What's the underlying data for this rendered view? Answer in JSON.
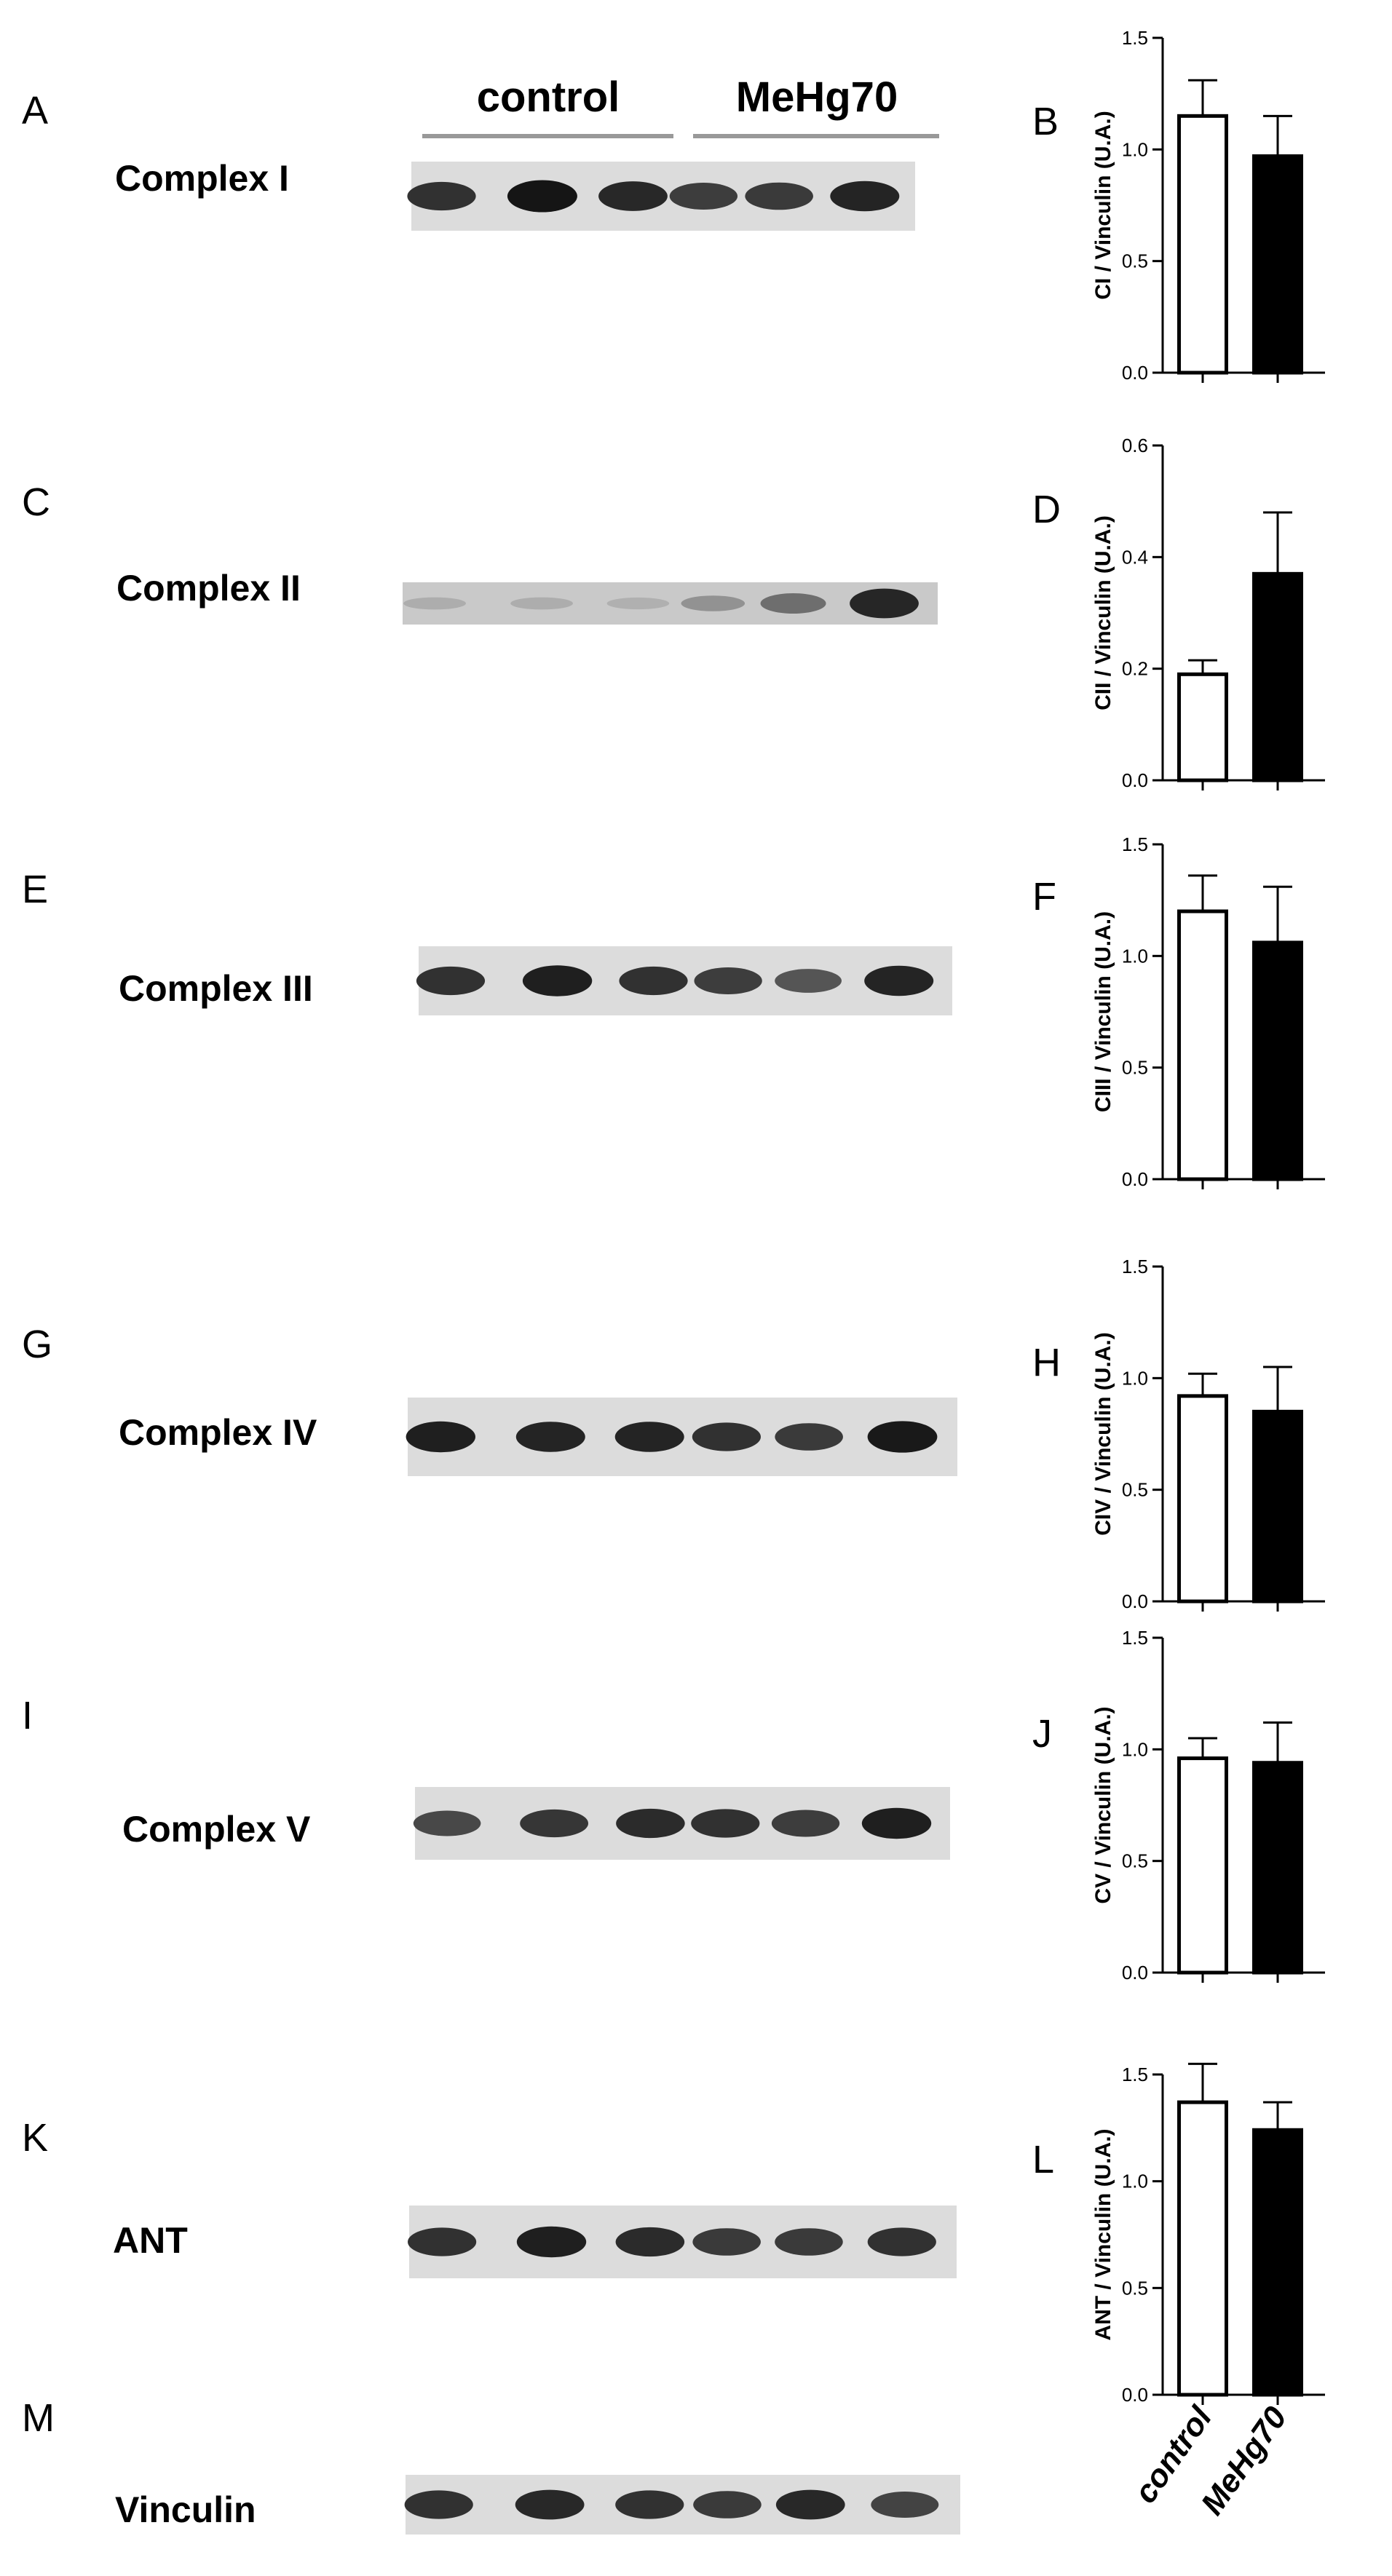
{
  "groups": [
    "control",
    "MeHg70"
  ],
  "panels": [
    {
      "panel_letter": "A",
      "blot_name": "Complex I",
      "chart_letter": "B",
      "bands": [
        0.85,
        1.0,
        0.9,
        0.78,
        0.8,
        0.92
      ]
    },
    {
      "panel_letter": "C",
      "blot_name": "Complex II",
      "chart_letter": "D",
      "bands": [
        0.15,
        0.15,
        0.13,
        0.3,
        0.5,
        0.9
      ]
    },
    {
      "panel_letter": "E",
      "blot_name": "Complex III",
      "chart_letter": "F",
      "bands": [
        0.85,
        0.95,
        0.85,
        0.78,
        0.65,
        0.92
      ]
    },
    {
      "panel_letter": "G",
      "blot_name": "Complex IV",
      "chart_letter": "H",
      "bands": [
        0.95,
        0.92,
        0.92,
        0.85,
        0.8,
        0.98
      ]
    },
    {
      "panel_letter": "I",
      "blot_name": "Complex V",
      "chart_letter": "J",
      "bands": [
        0.72,
        0.82,
        0.88,
        0.85,
        0.78,
        0.95
      ]
    },
    {
      "panel_letter": "K",
      "blot_name": "ANT",
      "chart_letter": "L",
      "bands": [
        0.85,
        0.95,
        0.88,
        0.8,
        0.8,
        0.85
      ]
    },
    {
      "panel_letter": "M",
      "blot_name": "Vinculin",
      "chart_letter": "",
      "bands": [
        0.85,
        0.9,
        0.85,
        0.8,
        0.9,
        0.75
      ]
    }
  ],
  "chart_data": [
    {
      "type": "bar",
      "categories": [
        "control",
        "MeHg70"
      ],
      "values": [
        1.15,
        0.97
      ],
      "errors": [
        0.16,
        0.18
      ],
      "ylabel": "CI / Vinculin (U.A.)",
      "ylim": [
        0,
        1.5
      ],
      "yticks": [
        "0.0",
        "0.5",
        "1.0",
        "1.5"
      ],
      "fills": [
        "#ffffff",
        "#000000"
      ]
    },
    {
      "type": "bar",
      "categories": [
        "control",
        "MeHg70"
      ],
      "values": [
        0.19,
        0.37
      ],
      "errors": [
        0.025,
        0.11
      ],
      "ylabel": "CII / Vinculin (U.A.)",
      "ylim": [
        0,
        0.6
      ],
      "yticks": [
        "0.0",
        "0.2",
        "0.4",
        "0.6"
      ],
      "fills": [
        "#ffffff",
        "#000000"
      ]
    },
    {
      "type": "bar",
      "categories": [
        "control",
        "MeHg70"
      ],
      "values": [
        1.2,
        1.06
      ],
      "errors": [
        0.16,
        0.25
      ],
      "ylabel": "CIII / Vinculin (U.A.)",
      "ylim": [
        0,
        1.5
      ],
      "yticks": [
        "0.0",
        "0.5",
        "1.0",
        "1.5"
      ],
      "fills": [
        "#ffffff",
        "#000000"
      ]
    },
    {
      "type": "bar",
      "categories": [
        "control",
        "MeHg70"
      ],
      "values": [
        0.92,
        0.85
      ],
      "errors": [
        0.1,
        0.2
      ],
      "ylabel": "CIV / Vinculin (U.A.)",
      "ylim": [
        0,
        1.5
      ],
      "yticks": [
        "0.0",
        "0.5",
        "1.0",
        "1.5"
      ],
      "fills": [
        "#ffffff",
        "#000000"
      ]
    },
    {
      "type": "bar",
      "categories": [
        "control",
        "MeHg70"
      ],
      "values": [
        0.96,
        0.94
      ],
      "errors": [
        0.09,
        0.18
      ],
      "ylabel": "CV / Vinculin (U.A.)",
      "ylim": [
        0,
        1.5
      ],
      "yticks": [
        "0.0",
        "0.5",
        "1.0",
        "1.5"
      ],
      "fills": [
        "#ffffff",
        "#000000"
      ]
    },
    {
      "type": "bar",
      "categories": [
        "control",
        "MeHg70"
      ],
      "values": [
        1.37,
        1.24
      ],
      "errors": [
        0.18,
        0.13
      ],
      "ylabel": "ANT / Vinculin (U.A.)",
      "ylim": [
        0,
        1.5
      ],
      "yticks": [
        "0.0",
        "0.5",
        "1.0",
        "1.5"
      ],
      "fills": [
        "#ffffff",
        "#000000"
      ],
      "xtick_labels_shown": true
    }
  ]
}
